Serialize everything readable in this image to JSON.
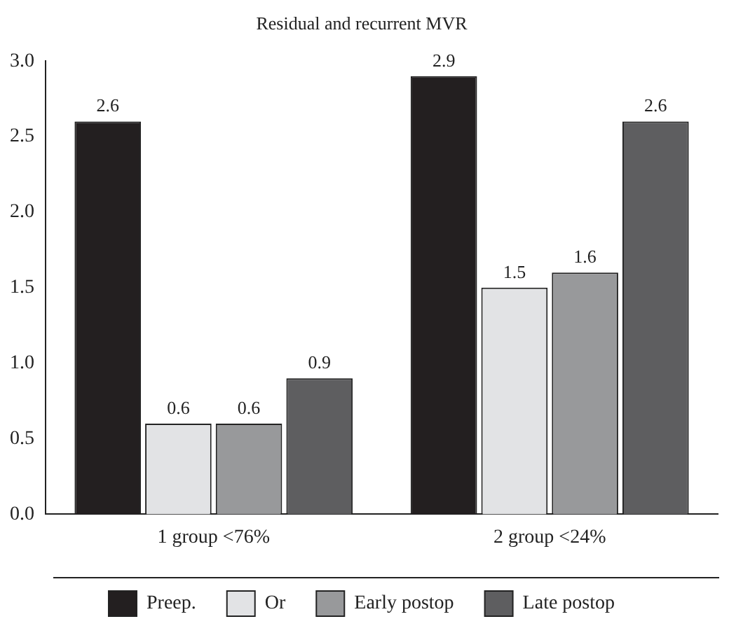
{
  "chart_data": {
    "type": "bar",
    "title": "Residual and recurrent MVR",
    "categories": [
      "1 group <76%",
      "2 group <24%"
    ],
    "series": [
      {
        "name": "Preep.",
        "color": "#231f20",
        "values": [
          2.6,
          2.9
        ]
      },
      {
        "name": "Or",
        "color": "#e2e3e5",
        "values": [
          0.6,
          1.5
        ]
      },
      {
        "name": "Early postop",
        "color": "#98999b",
        "values": [
          0.6,
          1.6
        ]
      },
      {
        "name": "Late postop",
        "color": "#5e5e60",
        "values": [
          0.9,
          2.6
        ]
      }
    ],
    "ylim": [
      0,
      3
    ],
    "yticks": [
      {
        "value": 0,
        "label": "0.0"
      },
      {
        "value": 0.5,
        "label": "0.5"
      },
      {
        "value": 1,
        "label": "1.0"
      },
      {
        "value": 1.5,
        "label": "1.5"
      },
      {
        "value": 2,
        "label": "2.0"
      },
      {
        "value": 2.5,
        "label": "2.5"
      },
      {
        "value": 3,
        "label": "3.0"
      }
    ],
    "grid": false,
    "legend": "bottom",
    "data_labels": true
  }
}
